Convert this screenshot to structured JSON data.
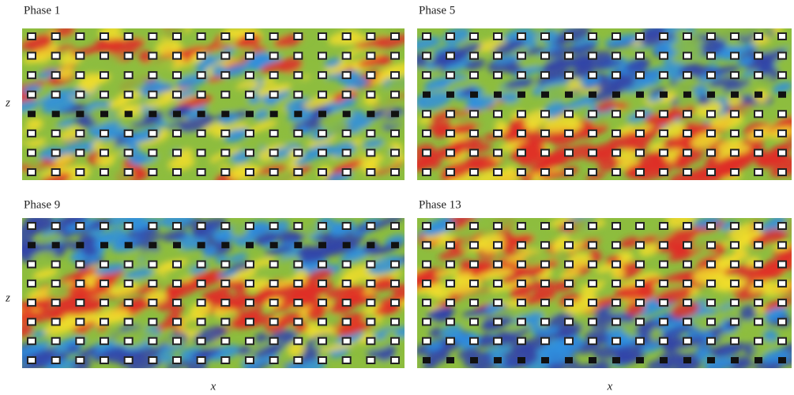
{
  "panels": [
    {
      "title": "Phase 1",
      "y_label": "z"
    },
    {
      "title": "Phase 5"
    },
    {
      "title": "Phase 9",
      "y_label": "z",
      "x_label": "x"
    },
    {
      "title": "Phase 13",
      "x_label": "x"
    }
  ]
}
